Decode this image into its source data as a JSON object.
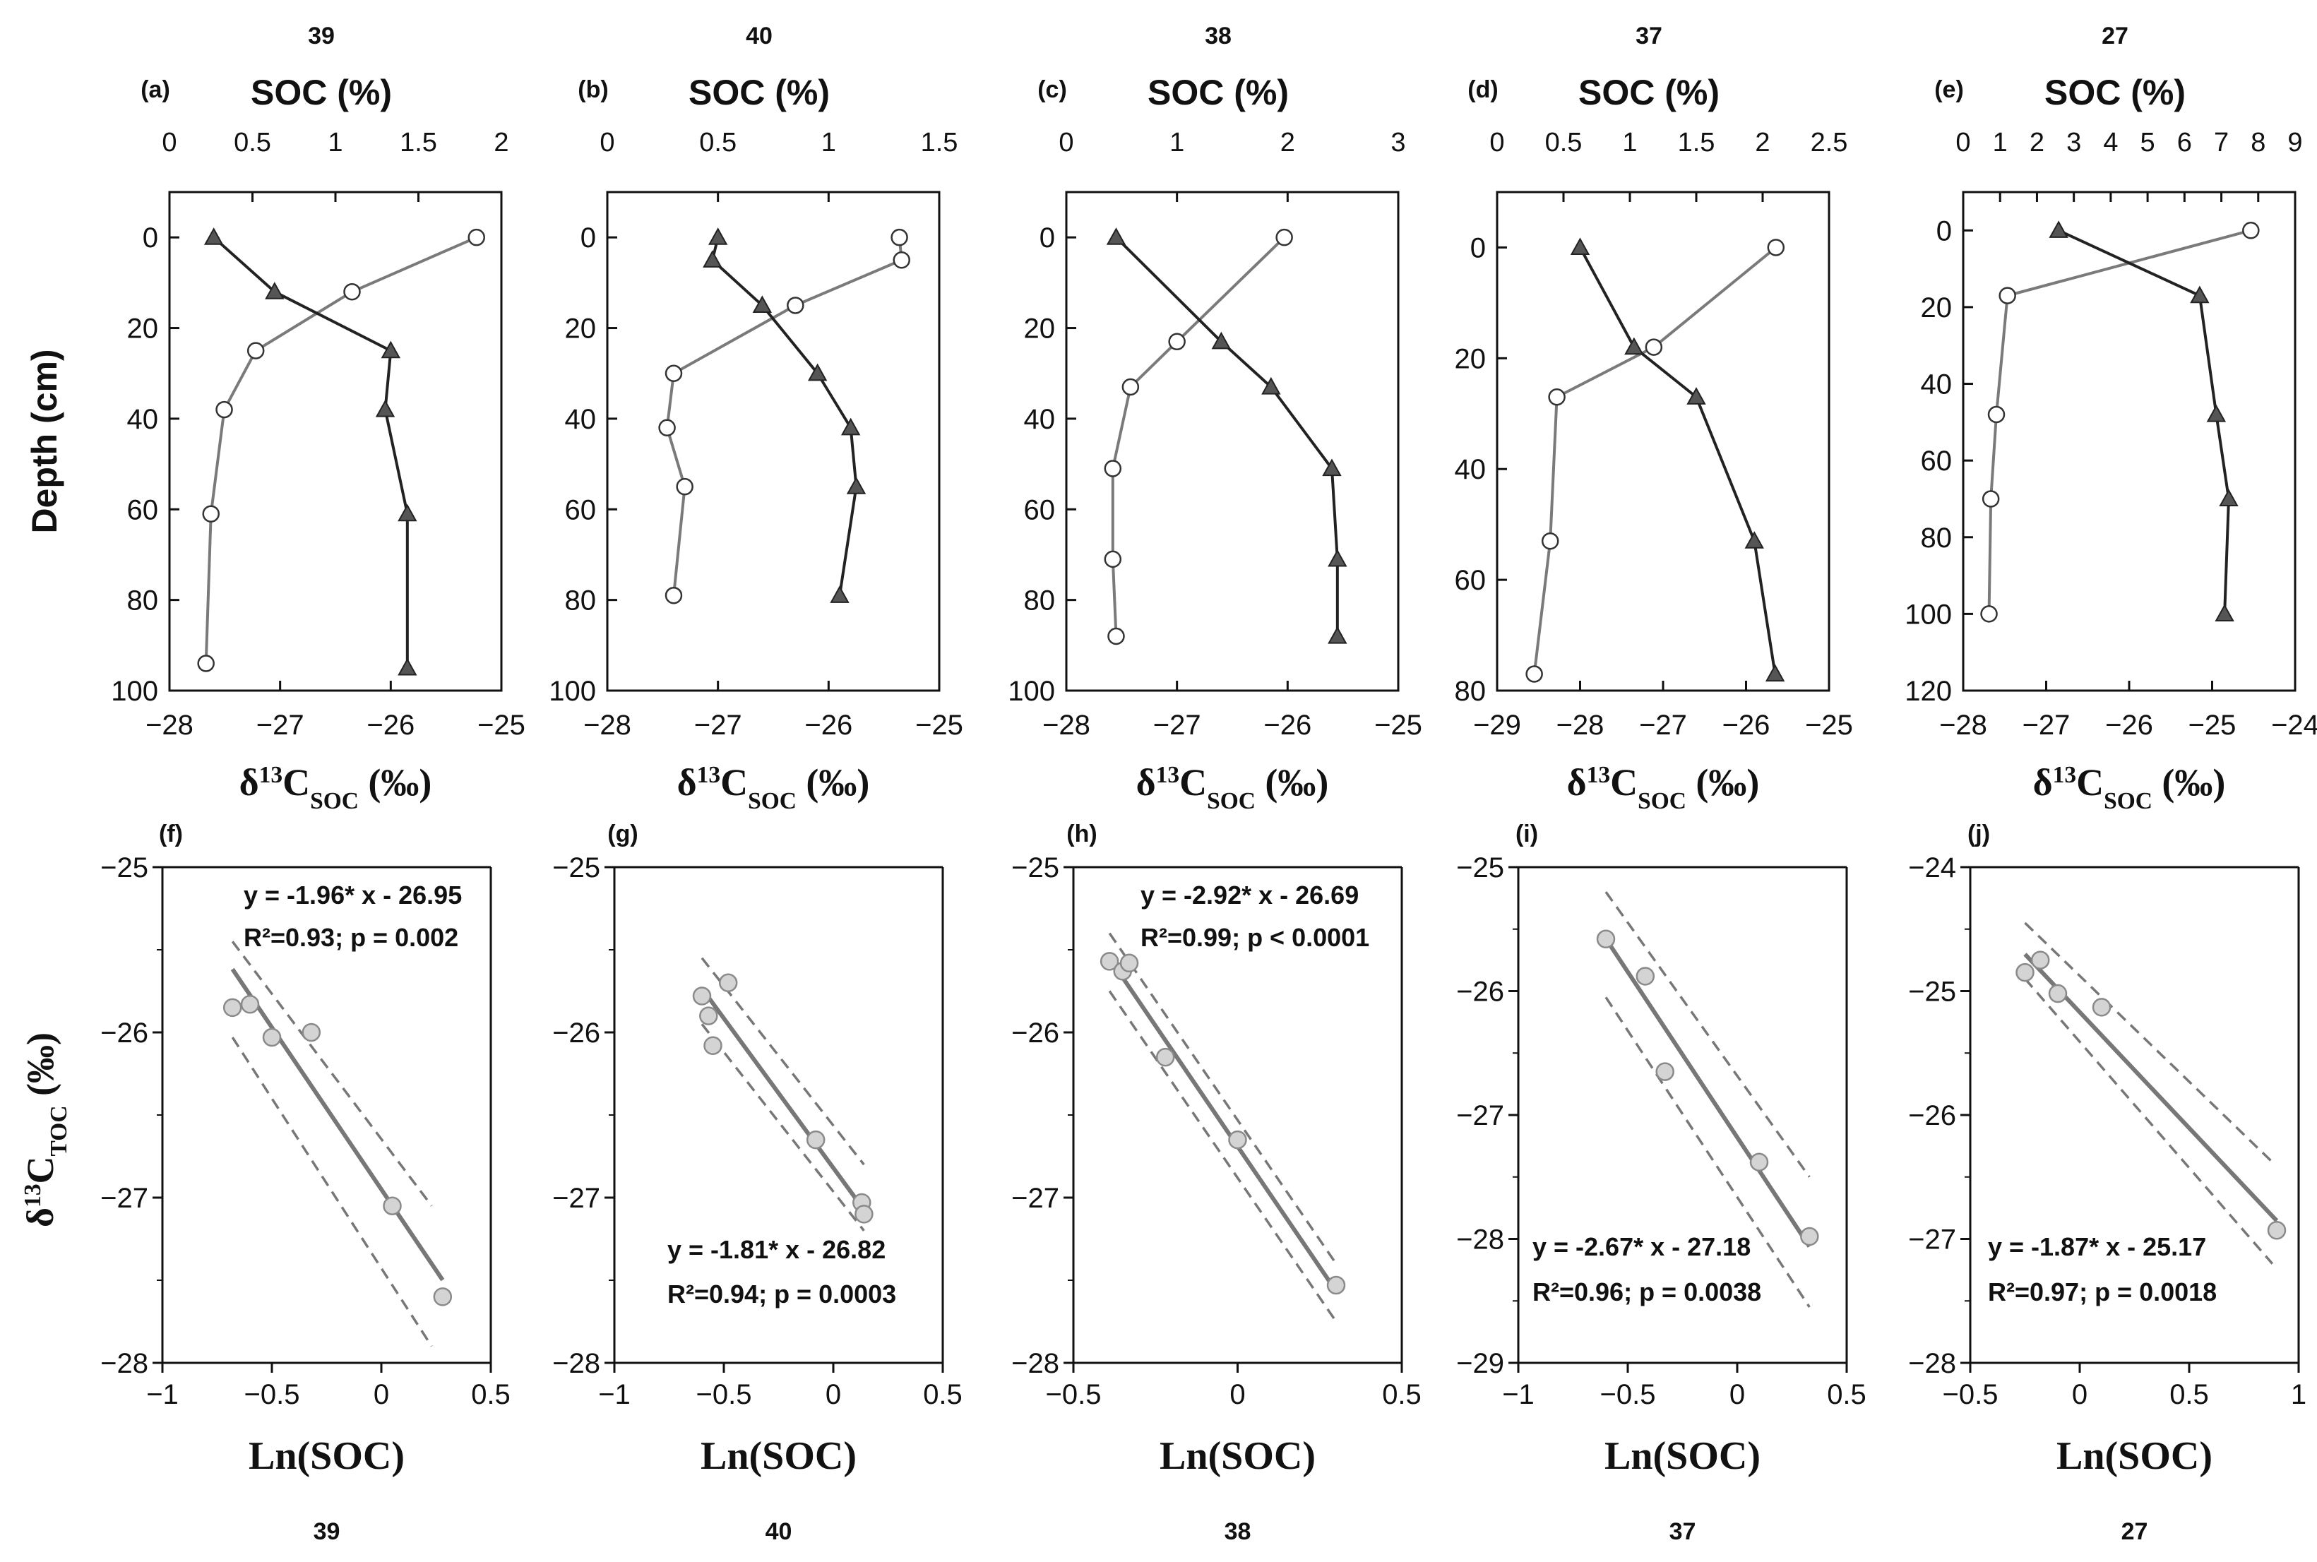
{
  "chart_data": [
    {
      "type": "scatter",
      "panel": "depth-profile",
      "site": "39",
      "letter": "(a)",
      "top_label": "SOC (%)",
      "bottom_label": "δ13C_SOC (‰)",
      "ylabel": "Depth (cm)",
      "xlim": [
        -28,
        -25
      ],
      "xticks": [
        -28,
        -27,
        -26,
        -25
      ],
      "toplim": [
        0,
        2
      ],
      "topticks": [
        0,
        0.5,
        1,
        1.5,
        2
      ],
      "ylim": [
        -10,
        100
      ],
      "yticks": [
        0,
        20,
        40,
        60,
        80,
        100
      ],
      "series": [
        {
          "name": "δ13C SOC",
          "marker": "triangle",
          "x": [
            -27.6,
            -27.05,
            -26.0,
            -26.05,
            -25.85,
            -25.85
          ],
          "y": [
            0,
            12,
            25,
            38,
            61,
            95
          ]
        },
        {
          "name": "SOC",
          "marker": "circle",
          "x": [
            1.85,
            1.1,
            0.52,
            0.33,
            0.25,
            0.22
          ],
          "y": [
            0,
            12,
            25,
            38,
            61,
            94
          ]
        }
      ]
    },
    {
      "type": "scatter",
      "panel": "depth-profile",
      "site": "40",
      "letter": "(b)",
      "top_label": "SOC (%)",
      "bottom_label": "δ13C_SOC (‰)",
      "xlim": [
        -28,
        -25
      ],
      "xticks": [
        -28,
        -27,
        -26,
        -25
      ],
      "toplim": [
        0,
        1.5
      ],
      "topticks": [
        0,
        0.5,
        1,
        1.5
      ],
      "ylim": [
        -10,
        100
      ],
      "yticks": [
        0,
        20,
        40,
        60,
        80,
        100
      ],
      "series": [
        {
          "name": "δ13C SOC",
          "marker": "triangle",
          "x": [
            -27.0,
            -27.05,
            -26.6,
            -26.1,
            -25.8,
            -25.75,
            -25.9
          ],
          "y": [
            0,
            5,
            15,
            30,
            42,
            55,
            79
          ]
        },
        {
          "name": "SOC",
          "marker": "circle",
          "x": [
            1.32,
            1.33,
            0.85,
            0.3,
            0.27,
            0.35,
            0.3
          ],
          "y": [
            0,
            5,
            15,
            30,
            42,
            55,
            79
          ]
        }
      ]
    },
    {
      "type": "scatter",
      "panel": "depth-profile",
      "site": "38",
      "letter": "(c)",
      "top_label": "SOC (%)",
      "bottom_label": "δ13C_SOC (‰)",
      "xlim": [
        -28,
        -25
      ],
      "xticks": [
        -28,
        -27,
        -26,
        -25
      ],
      "toplim": [
        0,
        3
      ],
      "topticks": [
        0,
        1,
        2,
        3
      ],
      "ylim": [
        -10,
        100
      ],
      "yticks": [
        0,
        20,
        40,
        60,
        80,
        100
      ],
      "series": [
        {
          "name": "δ13C SOC",
          "marker": "triangle",
          "x": [
            -27.55,
            -26.6,
            -26.15,
            -25.6,
            -25.55,
            -25.55
          ],
          "y": [
            0,
            23,
            33,
            51,
            71,
            88
          ]
        },
        {
          "name": "SOC",
          "marker": "circle",
          "x": [
            1.97,
            1.0,
            0.58,
            0.42,
            0.42,
            0.45
          ],
          "y": [
            0,
            23,
            33,
            51,
            71,
            88
          ]
        }
      ]
    },
    {
      "type": "scatter",
      "panel": "depth-profile",
      "site": "37",
      "letter": "(d)",
      "top_label": "SOC (%)",
      "bottom_label": "δ13C_SOC (‰)",
      "xlim": [
        -29,
        -25
      ],
      "xticks": [
        -29,
        -28,
        -27,
        -26,
        -25
      ],
      "toplim": [
        0,
        2.5
      ],
      "topticks": [
        0,
        0.5,
        1,
        1.5,
        2,
        2.5
      ],
      "ylim": [
        -10,
        80
      ],
      "yticks": [
        0,
        20,
        40,
        60,
        80
      ],
      "series": [
        {
          "name": "δ13C SOC",
          "marker": "triangle",
          "x": [
            -28.0,
            -27.35,
            -26.6,
            -25.9,
            -25.65
          ],
          "y": [
            0,
            18,
            27,
            53,
            77
          ]
        },
        {
          "name": "SOC",
          "marker": "circle",
          "x": [
            2.1,
            1.18,
            0.45,
            0.4,
            0.28
          ],
          "y": [
            0,
            18,
            27,
            53,
            77
          ]
        }
      ]
    },
    {
      "type": "scatter",
      "panel": "depth-profile",
      "site": "27",
      "letter": "(e)",
      "top_label": "SOC (%)",
      "bottom_label": "δ13C_SOC (‰)",
      "xlim": [
        -28,
        -24
      ],
      "xticks": [
        -28,
        -27,
        -26,
        -25,
        -24
      ],
      "toplim": [
        0,
        9
      ],
      "topticks": [
        0,
        1,
        2,
        3,
        4,
        5,
        6,
        7,
        8,
        9
      ],
      "ylim": [
        -10,
        120
      ],
      "yticks": [
        0,
        20,
        40,
        60,
        80,
        100,
        120
      ],
      "series": [
        {
          "name": "δ13C SOC",
          "marker": "triangle",
          "x": [
            -26.85,
            -25.15,
            -24.95,
            -24.8,
            -24.85
          ],
          "y": [
            0,
            17,
            48,
            70,
            100
          ]
        },
        {
          "name": "SOC",
          "marker": "circle",
          "x": [
            7.8,
            1.2,
            0.9,
            0.75,
            0.7
          ],
          "y": [
            0,
            17,
            48,
            70,
            100
          ]
        }
      ]
    },
    {
      "type": "scatter",
      "panel": "regression",
      "site": "39",
      "letter": "(f)",
      "xlabel": "Ln(SOC)",
      "ylabel": "δ13C_TOC (‰)",
      "equation": "y = -1.96* x - 26.95",
      "stats": "R²=0.93; p = 0.002",
      "xlim": [
        -1,
        0.5
      ],
      "xticks": [
        -1,
        -0.5,
        0,
        0.5
      ],
      "ylim": [
        -28,
        -25
      ],
      "yticks": [
        -25,
        -26,
        -27,
        -28
      ],
      "points": {
        "x": [
          -0.68,
          -0.6,
          -0.5,
          -0.32,
          0.05,
          0.28
        ],
        "y": [
          -25.85,
          -25.83,
          -26.03,
          -26.0,
          -27.05,
          -27.6
        ]
      },
      "fit": {
        "slope": -1.96,
        "intercept": -26.95,
        "x_range": [
          -0.68,
          0.28
        ]
      },
      "ci_band": {
        "x": [
          -0.68,
          0.23
        ],
        "upper": [
          -25.45,
          -27.05
        ],
        "lower": [
          -26.03,
          -27.9
        ]
      }
    },
    {
      "type": "scatter",
      "panel": "regression",
      "site": "40",
      "letter": "(g)",
      "xlabel": "Ln(SOC)",
      "equation": "y = -1.81* x - 26.82",
      "stats": "R²=0.94; p = 0.0003",
      "xlim": [
        -1,
        0.5
      ],
      "xticks": [
        -1,
        -0.5,
        0,
        0.5
      ],
      "ylim": [
        -28,
        -25
      ],
      "yticks": [
        -25,
        -26,
        -27,
        -28
      ],
      "points": {
        "x": [
          -0.6,
          -0.57,
          -0.55,
          -0.48,
          -0.08,
          0.13,
          0.14
        ],
        "y": [
          -25.78,
          -25.9,
          -26.08,
          -25.7,
          -26.65,
          -27.03,
          -27.1
        ]
      },
      "fit": {
        "slope": -1.81,
        "intercept": -26.82,
        "x_range": [
          -0.6,
          0.14
        ]
      },
      "ci_band": {
        "x": [
          -0.6,
          0.14
        ],
        "upper": [
          -25.55,
          -26.8
        ],
        "lower": [
          -25.95,
          -27.2
        ]
      }
    },
    {
      "type": "scatter",
      "panel": "regression",
      "site": "38",
      "letter": "(h)",
      "xlabel": "Ln(SOC)",
      "equation": "y = -2.92* x - 26.69",
      "stats": "R²=0.99; p < 0.0001",
      "xlim": [
        -0.5,
        0.5
      ],
      "xticks": [
        -0.5,
        0,
        0.5
      ],
      "ylim": [
        -28,
        -25
      ],
      "yticks": [
        -25,
        -26,
        -27,
        -28
      ],
      "points": {
        "x": [
          -0.39,
          -0.35,
          -0.33,
          -0.22,
          0.0,
          0.3
        ],
        "y": [
          -25.57,
          -25.63,
          -25.58,
          -26.15,
          -26.65,
          -27.53
        ]
      },
      "fit": {
        "slope": -2.92,
        "intercept": -26.69,
        "x_range": [
          -0.39,
          0.3
        ]
      },
      "ci_band": {
        "x": [
          -0.39,
          0.3
        ],
        "upper": [
          -25.4,
          -27.4
        ],
        "lower": [
          -25.75,
          -27.75
        ]
      }
    },
    {
      "type": "scatter",
      "panel": "regression",
      "site": "37",
      "letter": "(i)",
      "xlabel": "Ln(SOC)",
      "equation": "y = -2.67* x - 27.18",
      "stats": "R²=0.96; p = 0.0038",
      "xlim": [
        -1,
        0.5
      ],
      "xticks": [
        -1,
        -0.5,
        0,
        0.5
      ],
      "ylim": [
        -29,
        -25
      ],
      "yticks": [
        -25,
        -26,
        -27,
        -28,
        -29
      ],
      "points": {
        "x": [
          -0.6,
          -0.42,
          -0.33,
          0.1,
          0.33
        ],
        "y": [
          -25.58,
          -25.88,
          -26.65,
          -27.38,
          -27.98
        ]
      },
      "fit": {
        "slope": -2.67,
        "intercept": -27.18,
        "x_range": [
          -0.6,
          0.33
        ]
      },
      "ci_band": {
        "x": [
          -0.6,
          0.33
        ],
        "upper": [
          -25.2,
          -27.5
        ],
        "lower": [
          -26.05,
          -28.55
        ]
      }
    },
    {
      "type": "scatter",
      "panel": "regression",
      "site": "27",
      "letter": "(j)",
      "xlabel": "Ln(SOC)",
      "equation": "y = -1.87* x - 25.17",
      "stats": "R²=0.97; p = 0.0018",
      "xlim": [
        -0.5,
        1
      ],
      "xticks": [
        -0.5,
        0,
        0.5,
        1
      ],
      "ylim": [
        -28,
        -24
      ],
      "yticks": [
        -24,
        -25,
        -26,
        -27,
        -28
      ],
      "points": {
        "x": [
          -0.25,
          -0.18,
          -0.1,
          0.1,
          0.9
        ],
        "y": [
          -24.85,
          -24.75,
          -25.02,
          -25.13,
          -26.93
        ]
      },
      "fit": {
        "slope": -1.87,
        "intercept": -25.17,
        "x_range": [
          -0.25,
          0.9
        ]
      },
      "ci_band": {
        "x": [
          -0.25,
          0.88
        ],
        "upper": [
          -24.45,
          -26.38
        ],
        "lower": [
          -24.9,
          -27.2
        ]
      }
    }
  ],
  "colors": {
    "black_line": "#222222",
    "grey_line": "#7a7a7a",
    "triangle_fill": "#555555",
    "circle_fill": "#ffffff",
    "reg_point_fill": "#d4d4d4",
    "reg_point_stroke": "#8a8a8a",
    "fit_line": "#777777",
    "ci_line": "#777777"
  }
}
